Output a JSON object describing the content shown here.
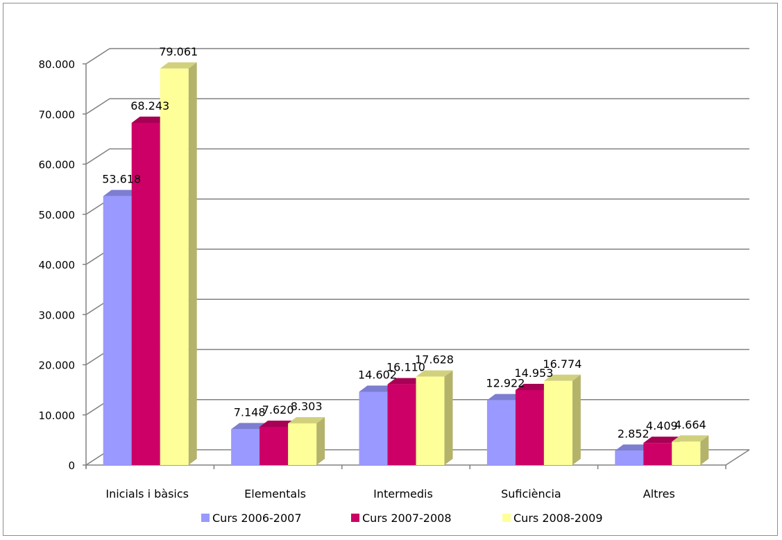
{
  "chart_data": {
    "type": "bar",
    "style": "3d-clustered-column",
    "categories": [
      "Inicials i bàsics",
      "Elementals",
      "Intermedis",
      "Suficiència",
      "Altres"
    ],
    "series": [
      {
        "name": "Curs 2006-2007",
        "values": [
          53618,
          7148,
          14602,
          12922,
          2852
        ],
        "value_labels": [
          "53.618",
          "7.148",
          "14.602",
          "12.922",
          "2.852"
        ],
        "color": "#9999FF"
      },
      {
        "name": "Curs 2007-2008",
        "values": [
          68243,
          7620,
          16110,
          14953,
          4409
        ],
        "value_labels": [
          "68.243",
          "7.620",
          "16.110",
          "14.953",
          "4.409"
        ],
        "color": "#CC0066"
      },
      {
        "name": "Curs 2008-2009",
        "values": [
          79061,
          8303,
          17628,
          16774,
          4664
        ],
        "value_labels": [
          "79.061",
          "8.303",
          "17.628",
          "16.774",
          "4.664"
        ],
        "color": "#FFFF99"
      }
    ],
    "y_ticks": [
      0,
      10000,
      20000,
      30000,
      40000,
      50000,
      60000,
      70000,
      80000
    ],
    "y_tick_labels": [
      "0",
      "10.000",
      "20.000",
      "30.000",
      "40.000",
      "50.000",
      "60.000",
      "70.000",
      "80.000"
    ],
    "ylim": [
      0,
      80000
    ],
    "title": "",
    "xlabel": "",
    "ylabel": "",
    "grid": true,
    "legend_position": "bottom"
  }
}
